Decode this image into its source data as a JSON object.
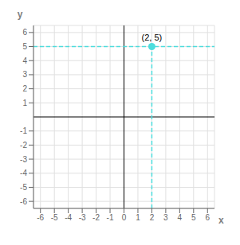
{
  "chart_data": {
    "type": "scatter",
    "x": [
      2
    ],
    "values": [
      5
    ],
    "color": "#4DDDDD",
    "xlim": [
      -6.5,
      6.5
    ],
    "ylim": [
      -6.5,
      6.5
    ],
    "xticks": [
      -6,
      -5,
      -4,
      -3,
      -2,
      -1,
      0,
      1,
      2,
      3,
      4,
      5,
      6
    ],
    "yticks": [
      -6,
      -5,
      -4,
      -3,
      -2,
      -1,
      1,
      2,
      3,
      4,
      5,
      6
    ],
    "xlabel": "x",
    "ylabel": "y",
    "grid": true,
    "annotations": [
      {
        "x": 2,
        "y": 5,
        "text": "(2, 5)"
      }
    ]
  }
}
